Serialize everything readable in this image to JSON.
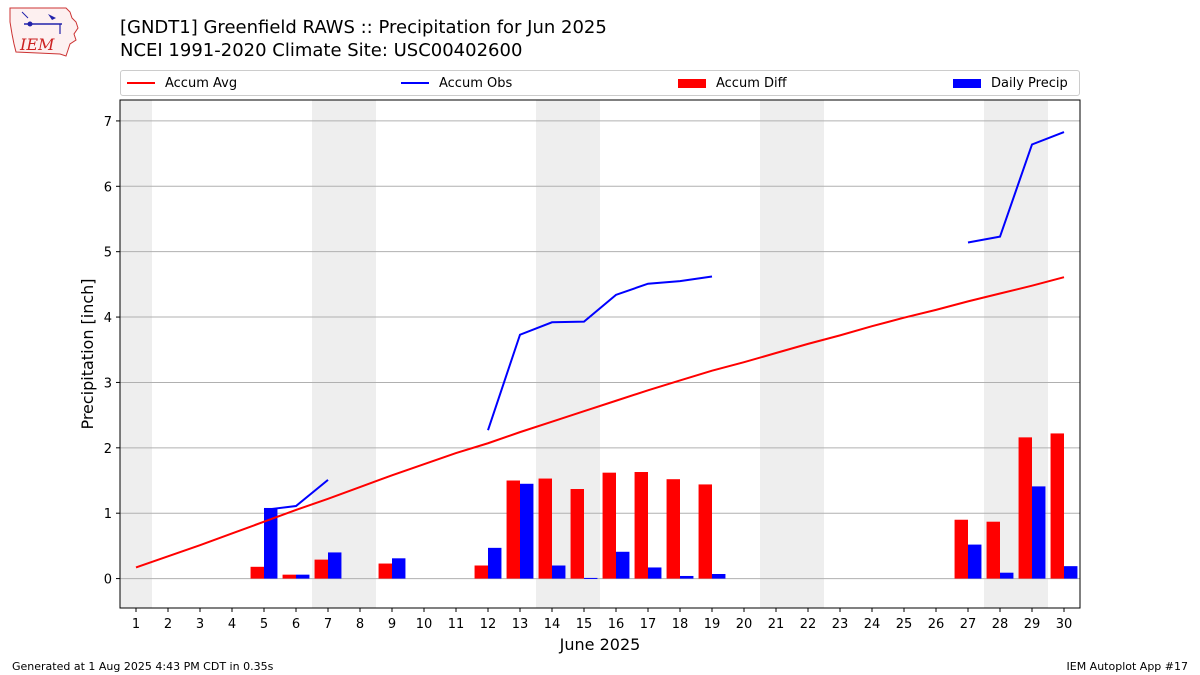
{
  "header": {
    "title_line1": "[GNDT1] Greenfield RAWS :: Precipitation for Jun 2025",
    "title_line2": "NCEI 1991-2020 Climate Site: USC00402600",
    "logo_text": "IEM"
  },
  "legend": {
    "accum_avg": "Accum Avg",
    "accum_obs": "Accum Obs",
    "accum_diff": "Accum Diff",
    "daily_precip": "Daily Precip"
  },
  "colors": {
    "avg": "#ff0000",
    "obs": "#0000ff",
    "diff": "#ff0000",
    "daily": "#0000ff",
    "weekend_shade": "#eeeeee",
    "grid": "#b0b0b0"
  },
  "chart_data": {
    "type": "bar",
    "xlabel": "June 2025",
    "ylabel": "Precipitation [inch]",
    "xlim": [
      0.5,
      30.5
    ],
    "ylim": [
      -0.45,
      7.32
    ],
    "yticks": [
      0,
      1,
      2,
      3,
      4,
      5,
      6,
      7
    ],
    "grid": "horizontal",
    "legend_placement": "top",
    "days": [
      1,
      2,
      3,
      4,
      5,
      6,
      7,
      8,
      9,
      10,
      11,
      12,
      13,
      14,
      15,
      16,
      17,
      18,
      19,
      20,
      21,
      22,
      23,
      24,
      25,
      26,
      27,
      28,
      29,
      30
    ],
    "shaded_weekend_ranges": [
      [
        0.5,
        1.5
      ],
      [
        6.5,
        8.5
      ],
      [
        13.5,
        15.5
      ],
      [
        20.5,
        22.5
      ],
      [
        27.5,
        29.5
      ]
    ],
    "series": [
      {
        "name": "Accum Avg",
        "kind": "line",
        "values": [
          0.17,
          0.34,
          0.51,
          0.69,
          0.87,
          1.05,
          1.22,
          1.4,
          1.58,
          1.75,
          1.92,
          2.07,
          2.24,
          2.4,
          2.56,
          2.72,
          2.88,
          3.03,
          3.18,
          3.31,
          3.45,
          3.59,
          3.72,
          3.86,
          3.99,
          4.11,
          4.24,
          4.36,
          4.48,
          4.61
        ]
      },
      {
        "name": "Accum Obs",
        "kind": "line",
        "values": [
          null,
          null,
          null,
          null,
          1.05,
          1.11,
          1.51,
          null,
          null,
          null,
          null,
          2.27,
          3.73,
          3.92,
          3.93,
          4.34,
          4.51,
          4.55,
          4.62,
          null,
          null,
          null,
          null,
          null,
          null,
          null,
          5.14,
          5.23,
          6.64,
          6.83
        ]
      },
      {
        "name": "Accum Diff",
        "kind": "bar",
        "values": [
          null,
          null,
          null,
          null,
          0.18,
          0.06,
          0.29,
          null,
          0.23,
          null,
          null,
          0.2,
          1.5,
          1.53,
          1.37,
          1.62,
          1.63,
          1.52,
          1.44,
          null,
          null,
          null,
          null,
          null,
          null,
          null,
          0.9,
          0.87,
          2.16,
          2.22
        ]
      },
      {
        "name": "Daily Precip",
        "kind": "bar",
        "values": [
          null,
          null,
          null,
          null,
          1.08,
          0.06,
          0.4,
          null,
          0.31,
          null,
          null,
          0.47,
          1.45,
          0.2,
          0.01,
          0.41,
          0.17,
          0.04,
          0.07,
          null,
          null,
          null,
          null,
          null,
          null,
          null,
          0.52,
          0.09,
          1.41,
          0.19
        ]
      }
    ]
  },
  "footer": {
    "left": "Generated at 1 Aug 2025 4:43 PM CDT in 0.35s",
    "right": "IEM Autoplot App #17"
  }
}
